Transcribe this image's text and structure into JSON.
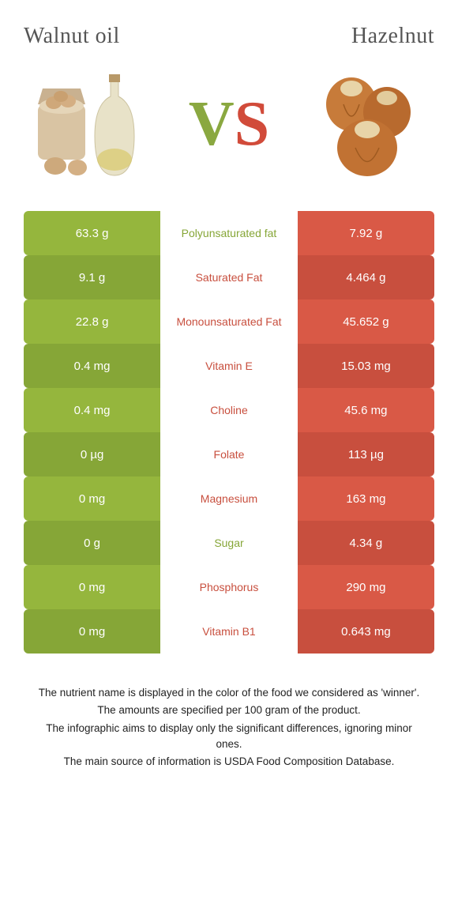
{
  "left_title": "Walnut oil",
  "right_title": "Hazelnut",
  "vs": {
    "v": "V",
    "s": "S"
  },
  "colors": {
    "left_col_a": "#95b63d",
    "left_col_b": "#86a637",
    "right_col_a": "#d95946",
    "right_col_b": "#c84f3e",
    "mid_winner_left": "#86a637",
    "mid_winner_right": "#c84f3e"
  },
  "rows": [
    {
      "left": "63.3 g",
      "label": "Polyunsaturated fat",
      "right": "7.92 g",
      "winner": "left"
    },
    {
      "left": "9.1 g",
      "label": "Saturated Fat",
      "right": "4.464 g",
      "winner": "right"
    },
    {
      "left": "22.8 g",
      "label": "Monounsaturated Fat",
      "right": "45.652 g",
      "winner": "right"
    },
    {
      "left": "0.4 mg",
      "label": "Vitamin E",
      "right": "15.03 mg",
      "winner": "right"
    },
    {
      "left": "0.4 mg",
      "label": "Choline",
      "right": "45.6 mg",
      "winner": "right"
    },
    {
      "left": "0 µg",
      "label": "Folate",
      "right": "113 µg",
      "winner": "right"
    },
    {
      "left": "0 mg",
      "label": "Magnesium",
      "right": "163 mg",
      "winner": "right"
    },
    {
      "left": "0 g",
      "label": "Sugar",
      "right": "4.34 g",
      "winner": "left"
    },
    {
      "left": "0 mg",
      "label": "Phosphorus",
      "right": "290 mg",
      "winner": "right"
    },
    {
      "left": "0 mg",
      "label": "Vitamin B1",
      "right": "0.643 mg",
      "winner": "right"
    }
  ],
  "footer": [
    "The nutrient name is displayed in the color of the food we considered as 'winner'.",
    "The amounts are specified per 100 gram of the product.",
    "The infographic aims to display only the significant differences, ignoring minor ones.",
    "The main source of information is USDA Food Composition Database."
  ]
}
